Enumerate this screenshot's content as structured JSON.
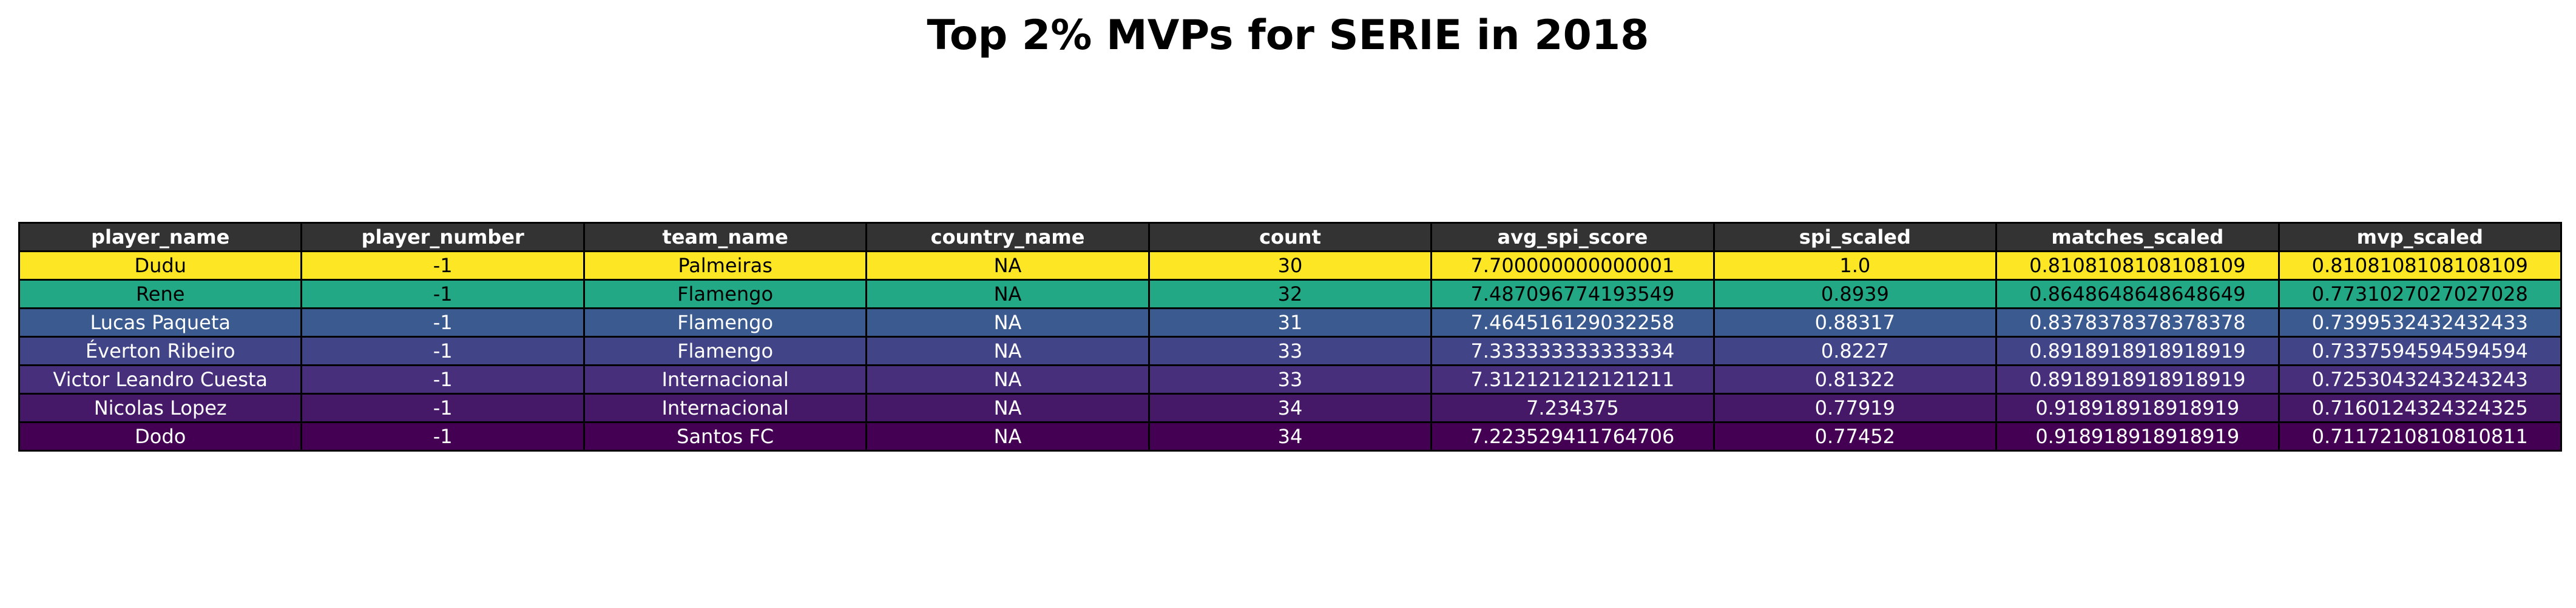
{
  "chart_data": {
    "type": "table",
    "title": "Top 2% MVPs for SERIE in 2018",
    "header_color": "#333333",
    "columns": [
      "player_name",
      "player_number",
      "team_name",
      "country_name",
      "count",
      "avg_spi_score",
      "spi_scaled",
      "matches_scaled",
      "mvp_scaled"
    ],
    "rows": [
      {
        "cells": [
          "Dudu",
          "-1",
          "Palmeiras",
          "NA",
          "30",
          "7.700000000000001",
          "1.0",
          "0.8108108108108109",
          "0.8108108108108109"
        ],
        "color": "#fde725",
        "text_color": "#000000"
      },
      {
        "cells": [
          "Rene",
          "-1",
          "Flamengo",
          "NA",
          "32",
          "7.487096774193549",
          "0.8939",
          "0.8648648648648649",
          "0.7731027027027028"
        ],
        "color": "#22a884",
        "text_color": "#000000"
      },
      {
        "cells": [
          "Lucas Paqueta",
          "-1",
          "Flamengo",
          "NA",
          "31",
          "7.464516129032258",
          "0.88317",
          "0.8378378378378378",
          "0.7399532432432433"
        ],
        "color": "#3b5a8f",
        "text_color": "#ffffff"
      },
      {
        "cells": [
          "Éverton Ribeiro",
          "-1",
          "Flamengo",
          "NA",
          "33",
          "7.333333333333334",
          "0.8227",
          "0.8918918918918919",
          "0.7337594594594594"
        ],
        "color": "#414487",
        "text_color": "#ffffff"
      },
      {
        "cells": [
          "Victor Leandro Cuesta",
          "-1",
          "Internacional",
          "NA",
          "33",
          "7.312121212121211",
          "0.81322",
          "0.8918918918918919",
          "0.7253043243243243"
        ],
        "color": "#482f7c",
        "text_color": "#ffffff"
      },
      {
        "cells": [
          "Nicolas Lopez",
          "-1",
          "Internacional",
          "NA",
          "34",
          "7.234375",
          "0.77919",
          "0.918918918918919",
          "0.7160124324324325"
        ],
        "color": "#461868",
        "text_color": "#ffffff"
      },
      {
        "cells": [
          "Dodo",
          "-1",
          "Santos FC",
          "NA",
          "34",
          "7.223529411764706",
          "0.77452",
          "0.918918918918919",
          "0.7117210810810811"
        ],
        "color": "#440154",
        "text_color": "#ffffff"
      }
    ]
  }
}
